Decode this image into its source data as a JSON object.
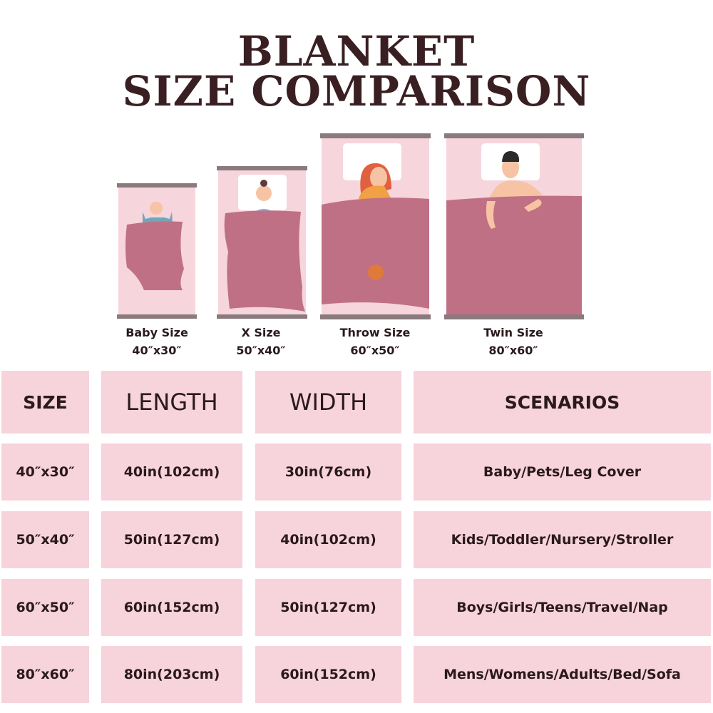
{
  "title": {
    "line1": "BLANKET",
    "line2": "SIZE COMPARISON"
  },
  "colors": {
    "title": "#3a1f22",
    "cell": "#f7d3dc",
    "blanket": "#c07084",
    "bed": "#f6d5dd",
    "rail": "#8a7a7e"
  },
  "sizes": [
    {
      "name": "Baby Size",
      "dims": "40″x30″"
    },
    {
      "name": "X Size",
      "dims": "50″x40″"
    },
    {
      "name": "Throw Size",
      "dims": "60″x50″"
    },
    {
      "name": "Twin Size",
      "dims": "80″x60″"
    }
  ],
  "table": {
    "headers": [
      "SIZE",
      "LENGTH",
      "WIDTH",
      "SCENARIOS"
    ],
    "rows": [
      [
        "40″x30″",
        "40in(102cm)",
        "30in(76cm)",
        "Baby/Pets/Leg Cover"
      ],
      [
        "50″x40″",
        "50in(127cm)",
        "40in(102cm)",
        "Kids/Toddler/Nursery/Stroller"
      ],
      [
        "60″x50″",
        "60in(152cm)",
        "50in(127cm)",
        "Boys/Girls/Teens/Travel/Nap"
      ],
      [
        "80″x60″",
        "80in(203cm)",
        "60in(152cm)",
        "Mens/Womens/Adults/Bed/Sofa"
      ]
    ]
  }
}
